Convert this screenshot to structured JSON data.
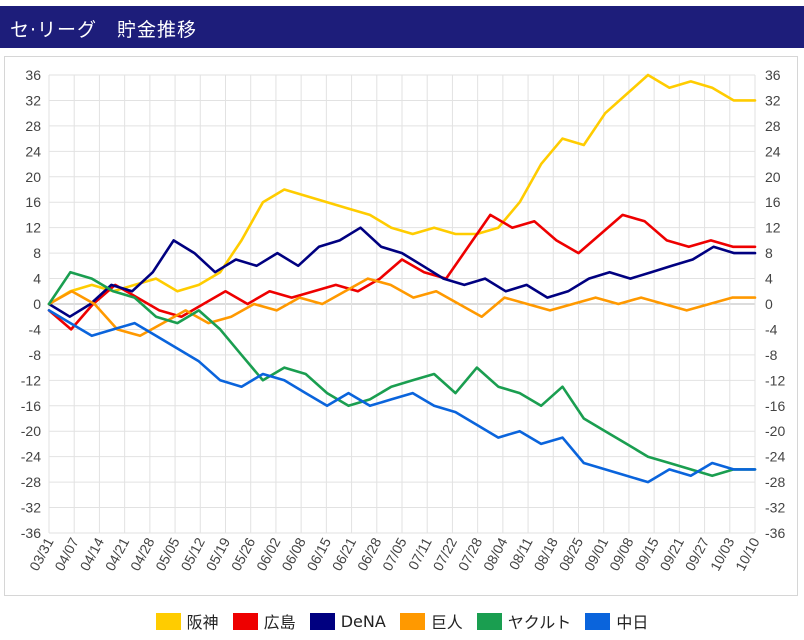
{
  "header": {
    "title": "セ·リーグ　貯金推移"
  },
  "chart_data": {
    "type": "line",
    "title": "",
    "xlabel": "",
    "ylabel": "",
    "ylim": [
      -36,
      36
    ],
    "yticks": [
      36,
      32,
      28,
      24,
      20,
      16,
      12,
      8,
      4,
      0,
      -4,
      -8,
      -12,
      -16,
      -20,
      -24,
      -28,
      -32,
      -36
    ],
    "ytick_labels_left": [
      "36",
      "32",
      "28",
      "24",
      "20",
      "16",
      "12",
      "8",
      "4",
      "0",
      "-4",
      "-8",
      "-12",
      "-16",
      "-20",
      "-24",
      "-28",
      "-32",
      "-36"
    ],
    "ytick_labels_right": [
      "36",
      "32",
      "28",
      "24",
      "20",
      "16",
      "12",
      "8",
      "4",
      "0",
      "-4",
      "-8",
      "-12",
      "-16",
      "-20",
      "-24",
      "-28",
      "-32",
      "-36"
    ],
    "xtick_labels": [
      "03/31",
      "04/07",
      "04/14",
      "04/21",
      "04/28",
      "05/05",
      "05/12",
      "05/19",
      "05/26",
      "06/02",
      "06/08",
      "06/15",
      "06/21",
      "06/28",
      "07/05",
      "07/11",
      "07/22",
      "07/28",
      "08/04",
      "08/11",
      "08/18",
      "08/25",
      "09/01",
      "09/08",
      "09/15",
      "09/21",
      "09/27",
      "10/03",
      "10/10"
    ],
    "grid": true,
    "legend_position": "bottom",
    "series": [
      {
        "name": "阪神",
        "color": "#ffcc00",
        "values": [
          0,
          2,
          3,
          2,
          3,
          4,
          2,
          3,
          5,
          10,
          16,
          18,
          17,
          16,
          15,
          14,
          12,
          11,
          12,
          11,
          11,
          12,
          16,
          22,
          26,
          25,
          30,
          33,
          36,
          34,
          35,
          34,
          32,
          32
        ]
      },
      {
        "name": "広島",
        "color": "#ee0000",
        "values": [
          -1,
          -4,
          0,
          3,
          1,
          -1,
          -2,
          0,
          2,
          0,
          2,
          1,
          2,
          3,
          2,
          4,
          7,
          5,
          4,
          9,
          14,
          12,
          13,
          10,
          8,
          11,
          14,
          13,
          10,
          9,
          10,
          9,
          9
        ]
      },
      {
        "name": "DeNA",
        "color": "#000080",
        "values": [
          0,
          -2,
          0,
          3,
          2,
          5,
          10,
          8,
          5,
          7,
          6,
          8,
          6,
          9,
          10,
          12,
          9,
          8,
          6,
          4,
          3,
          4,
          2,
          3,
          1,
          2,
          4,
          5,
          4,
          5,
          6,
          7,
          9,
          8,
          8
        ]
      },
      {
        "name": "巨人",
        "color": "#ff9900",
        "values": [
          0,
          2,
          0,
          -4,
          -5,
          -3,
          -1,
          -3,
          -2,
          0,
          -1,
          1,
          0,
          2,
          4,
          3,
          1,
          2,
          0,
          -2,
          1,
          0,
          -1,
          0,
          1,
          0,
          1,
          0,
          -1,
          0,
          1,
          1
        ]
      },
      {
        "name": "ヤクルト",
        "color": "#1a9e50",
        "values": [
          0,
          5,
          4,
          2,
          1,
          -2,
          -3,
          -1,
          -4,
          -8,
          -12,
          -10,
          -11,
          -14,
          -16,
          -15,
          -13,
          -12,
          -11,
          -14,
          -10,
          -13,
          -14,
          -16,
          -13,
          -18,
          -20,
          -22,
          -24,
          -25,
          -26,
          -27,
          -26,
          -26
        ]
      },
      {
        "name": "中日",
        "color": "#0a64dc",
        "values": [
          -1,
          -3,
          -5,
          -4,
          -3,
          -5,
          -7,
          -9,
          -12,
          -13,
          -11,
          -12,
          -14,
          -16,
          -14,
          -16,
          -15,
          -14,
          -16,
          -17,
          -19,
          -21,
          -20,
          -22,
          -21,
          -25,
          -26,
          -27,
          -28,
          -26,
          -27,
          -25,
          -26,
          -26
        ]
      }
    ]
  },
  "legend": {
    "items": [
      {
        "label": "阪神",
        "color": "#ffcc00"
      },
      {
        "label": "広島",
        "color": "#ee0000"
      },
      {
        "label": "DeNA",
        "color": "#000080"
      },
      {
        "label": "巨人",
        "color": "#ff9900"
      },
      {
        "label": "ヤクルト",
        "color": "#1a9e50"
      },
      {
        "label": "中日",
        "color": "#0a64dc"
      }
    ]
  }
}
